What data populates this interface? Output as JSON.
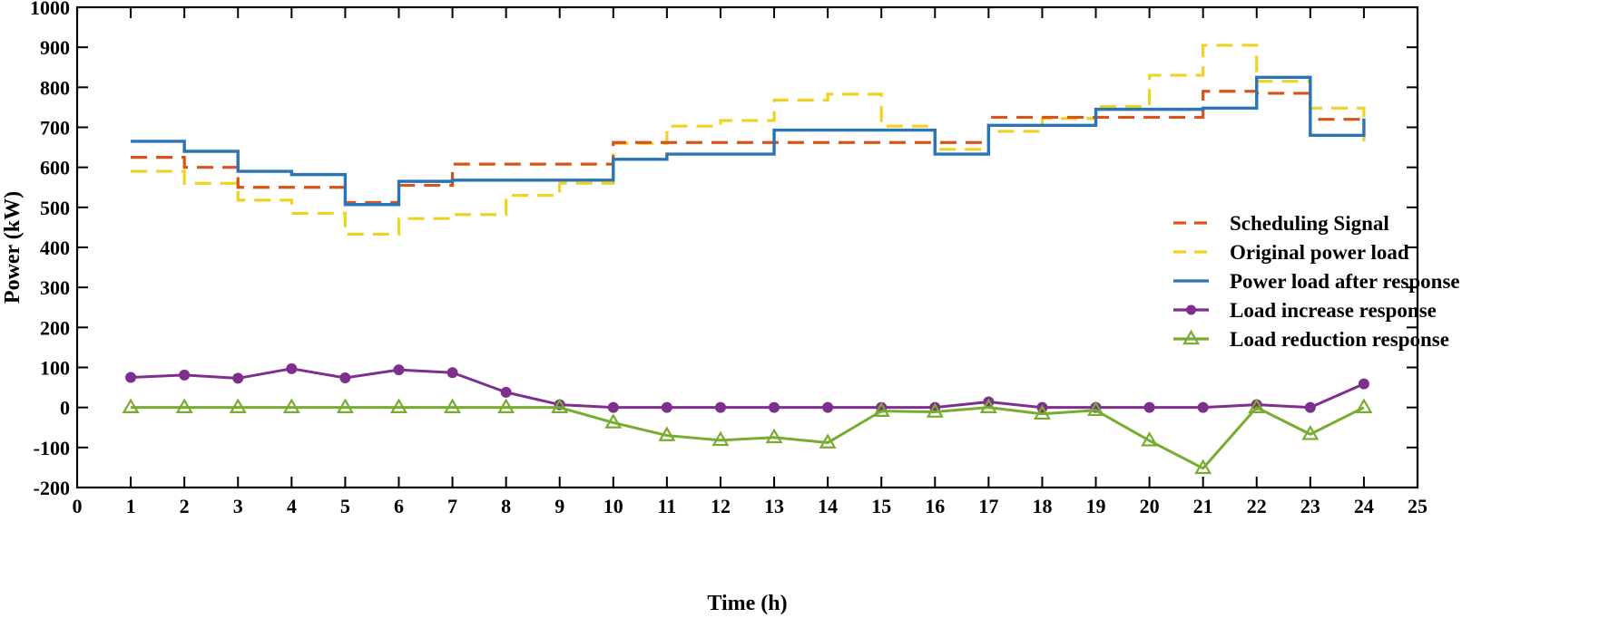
{
  "chart_data": {
    "type": "line",
    "xlabel": "Time (h)",
    "ylabel": "Power (kW)",
    "xlim": [
      0,
      25
    ],
    "ylim": [
      -200,
      1000
    ],
    "xticks": [
      0,
      1,
      2,
      3,
      4,
      5,
      6,
      7,
      8,
      9,
      10,
      11,
      12,
      13,
      14,
      15,
      16,
      17,
      18,
      19,
      20,
      21,
      22,
      23,
      24,
      25
    ],
    "yticks": [
      -200,
      -100,
      0,
      100,
      200,
      300,
      400,
      500,
      600,
      700,
      800,
      900,
      1000
    ],
    "grid": false,
    "legend_position": "right",
    "series": [
      {
        "name": "Scheduling Signal",
        "style": "step-dashed",
        "color": "#D95319",
        "x": [
          1,
          2,
          3,
          4,
          5,
          6,
          7,
          8,
          9,
          10,
          11,
          12,
          13,
          14,
          15,
          16,
          17,
          18,
          19,
          20,
          21,
          22,
          23,
          24
        ],
        "values": [
          625,
          600,
          550,
          550,
          512,
          555,
          608,
          608,
          608,
          662,
          662,
          662,
          662,
          662,
          662,
          662,
          725,
          725,
          725,
          725,
          790,
          785,
          720,
          720
        ]
      },
      {
        "name": "Original power load",
        "style": "step-dashed",
        "color": "#EDD421",
        "x": [
          1,
          2,
          3,
          4,
          5,
          6,
          7,
          8,
          9,
          10,
          11,
          12,
          13,
          14,
          15,
          16,
          17,
          18,
          19,
          20,
          21,
          22,
          23,
          24
        ],
        "values": [
          590,
          560,
          518,
          485,
          433,
          472,
          482,
          530,
          560,
          660,
          703,
          717,
          768,
          783,
          703,
          645,
          690,
          722,
          752,
          830,
          905,
          815,
          748,
          665
        ]
      },
      {
        "name": "Power load after response",
        "style": "step-solid",
        "color": "#2B74B5",
        "x": [
          1,
          2,
          3,
          4,
          5,
          6,
          7,
          8,
          9,
          10,
          11,
          12,
          13,
          14,
          15,
          16,
          17,
          18,
          19,
          20,
          21,
          22,
          23,
          24
        ],
        "values": [
          665,
          640,
          590,
          582,
          507,
          565,
          568,
          568,
          568,
          620,
          633,
          633,
          693,
          693,
          693,
          633,
          705,
          705,
          745,
          745,
          748,
          825,
          680,
          722
        ]
      },
      {
        "name": "Load increase response",
        "style": "line-circle",
        "color": "#7E2F8E",
        "x": [
          1,
          2,
          3,
          4,
          5,
          6,
          7,
          8,
          9,
          10,
          11,
          12,
          13,
          14,
          15,
          16,
          17,
          18,
          19,
          20,
          21,
          22,
          23,
          24
        ],
        "values": [
          75,
          81,
          73,
          97,
          74,
          94,
          87,
          38,
          7,
          0,
          0,
          0,
          0,
          0,
          0,
          0,
          14,
          0,
          0,
          0,
          0,
          7,
          0,
          59
        ]
      },
      {
        "name": "Load reduction response",
        "style": "line-triangle",
        "color": "#77AC30",
        "x": [
          1,
          2,
          3,
          4,
          5,
          6,
          7,
          8,
          9,
          10,
          11,
          12,
          13,
          14,
          15,
          16,
          17,
          18,
          19,
          20,
          21,
          22,
          23,
          24
        ],
        "values": [
          0,
          0,
          0,
          0,
          0,
          0,
          0,
          0,
          0,
          -38,
          -70,
          -82,
          -75,
          -88,
          -9,
          -11,
          0,
          -16,
          -7,
          -83,
          -152,
          0,
          -67,
          0
        ]
      }
    ]
  }
}
